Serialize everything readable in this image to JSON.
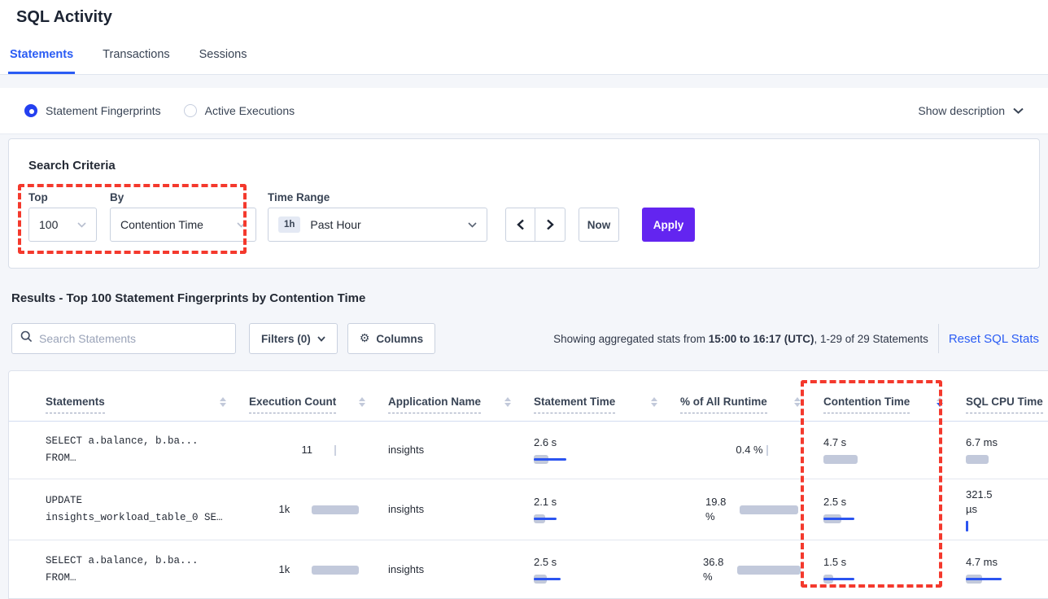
{
  "page": {
    "title": "SQL Activity"
  },
  "tabs": [
    {
      "label": "Statements",
      "active": true
    },
    {
      "label": "Transactions",
      "active": false
    },
    {
      "label": "Sessions",
      "active": false
    }
  ],
  "view_toggle": {
    "options": [
      {
        "label": "Statement Fingerprints",
        "selected": true
      },
      {
        "label": "Active Executions",
        "selected": false
      }
    ],
    "show_description_label": "Show description",
    "chevron_icon": "chevron-down-icon"
  },
  "search_criteria": {
    "title": "Search Criteria",
    "top": {
      "label": "Top",
      "value": "100"
    },
    "by": {
      "label": "By",
      "value": "Contention Time"
    },
    "time_range": {
      "label": "Time Range",
      "badge": "1h",
      "value": "Past Hour"
    },
    "now_label": "Now",
    "apply_label": "Apply"
  },
  "results": {
    "title": "Results - Top 100 Statement Fingerprints by Contention Time",
    "search_placeholder": "Search Statements",
    "filters_label": "Filters (0)",
    "columns_label": "Columns",
    "stats_prefix": "Showing aggregated stats from ",
    "stats_range": "15:00 to 16:17 (UTC)",
    "stats_suffix": ", 1-29 of 29 Statements",
    "reset_label": "Reset SQL Stats"
  },
  "table": {
    "headers": [
      {
        "label": "Statements",
        "sort": "none"
      },
      {
        "label": "Execution Count",
        "sort": "none"
      },
      {
        "label": "Application Name",
        "sort": "none"
      },
      {
        "label": "Statement Time",
        "sort": "none"
      },
      {
        "label": "% of All Runtime",
        "sort": "none"
      },
      {
        "label": "Contention Time",
        "sort": "desc"
      },
      {
        "label": "SQL CPU Time",
        "sort": "hidden"
      }
    ],
    "rows": [
      {
        "statement_line1": "SELECT a.balance, b.ba...",
        "statement_line2": "FROM…",
        "exec": {
          "v1": "11",
          "g": 2,
          "b": 0
        },
        "app": "insights",
        "stmt_time": {
          "v1": "2.6 s",
          "g": 18,
          "b": 40
        },
        "pct": {
          "v1": "0.4 %",
          "v2": "",
          "g": 2,
          "b": 0
        },
        "contention": {
          "v1": "4.7 s",
          "g": 42,
          "b": 0
        },
        "cpu": {
          "v1": "6.7 ms",
          "v2": "",
          "g": 28,
          "b": 0
        }
      },
      {
        "statement_line1": "UPDATE",
        "statement_line2": "insights_workload_table_0 SE…",
        "exec": {
          "v1": "1k",
          "g": 58,
          "b": 0
        },
        "app": "insights",
        "stmt_time": {
          "v1": "2.1 s",
          "g": 14,
          "b": 28
        },
        "pct": {
          "v1": "19.8",
          "v2": "%",
          "g": 72,
          "b": 0
        },
        "contention": {
          "v1": "2.5 s",
          "g": 22,
          "b": 38
        },
        "cpu": {
          "v1": "321.5",
          "v2": "µs",
          "g": 0,
          "b": 3
        }
      },
      {
        "statement_line1": "SELECT a.balance, b.ba...",
        "statement_line2": "FROM…",
        "exec": {
          "v1": "1k",
          "g": 58,
          "b": 0
        },
        "app": "insights",
        "stmt_time": {
          "v1": "2.5 s",
          "g": 16,
          "b": 33
        },
        "pct": {
          "v1": "36.8",
          "v2": "%",
          "g": 78,
          "b": 0
        },
        "contention": {
          "v1": "1.5 s",
          "g": 12,
          "b": 38
        },
        "cpu": {
          "v1": "4.7 ms",
          "v2": "",
          "g": 20,
          "b": 44
        }
      }
    ]
  },
  "colors": {
    "accent_blue": "#2a5cf4",
    "apply_purple": "#6325f0",
    "annotation_red": "#f4392d",
    "bar_gray": "#c2c9db",
    "bar_blue": "#2b54f0"
  }
}
